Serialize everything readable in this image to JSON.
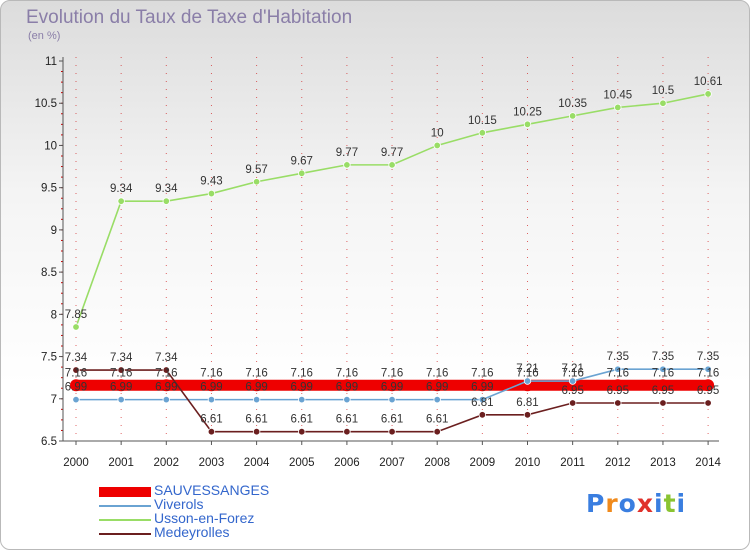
{
  "header": {
    "title": "Evolution du Taux de Taxe d'Habitation",
    "unit": "(en %)"
  },
  "logo": {
    "text": "Proxiti",
    "colors": [
      "#3a7ee0",
      "#f08a1c",
      "#3a7ee0",
      "#e0312b",
      "#3a7ee0",
      "#8ac432",
      "#3a7ee0"
    ]
  },
  "colors": {
    "grid_dash": "#cc0000",
    "axis": "#555555"
  },
  "chart_data": {
    "type": "line",
    "title": "Evolution du Taux de Taxe d'Habitation",
    "ylabel": "(en %)",
    "xlabel": "",
    "ylim": [
      6.5,
      11
    ],
    "y_ticks": [
      "6.5",
      "7",
      "7.5",
      "8",
      "8.5",
      "9",
      "9.5",
      "10",
      "10.5",
      "11"
    ],
    "categories": [
      "2000",
      "2001",
      "2002",
      "2003",
      "2004",
      "2005",
      "2006",
      "2007",
      "2008",
      "2009",
      "2010",
      "2011",
      "2012",
      "2013",
      "2014"
    ],
    "legend_position": "bottom-left",
    "series": [
      {
        "name": "SAUVESSANGES",
        "color": "#ee0000",
        "values": [
          7.16,
          7.16,
          7.16,
          7.16,
          7.16,
          7.16,
          7.16,
          7.16,
          7.16,
          7.16,
          7.16,
          7.16,
          7.16,
          7.16,
          7.16
        ],
        "labels": [
          "7.16",
          "7.16",
          "7.16",
          "7.16",
          "7.16",
          "7.16",
          "7.16",
          "7.16",
          "7.16",
          "7.16",
          "7.16",
          "7.16",
          "7.16",
          "7.16",
          "7.16"
        ]
      },
      {
        "name": "Viverols",
        "color": "#6aa3d2",
        "values": [
          6.99,
          6.99,
          6.99,
          6.99,
          6.99,
          6.99,
          6.99,
          6.99,
          6.99,
          6.99,
          7.21,
          7.21,
          7.35,
          7.35,
          7.35
        ],
        "labels": [
          "6.99",
          "6.99",
          "6.99",
          "6.99",
          "6.99",
          "6.99",
          "6.99",
          "6.99",
          "6.99",
          "6.99",
          "7.21",
          "7.21",
          "7.35",
          "7.35",
          "7.35"
        ]
      },
      {
        "name": "Usson-en-Forez",
        "color": "#99dd66",
        "values": [
          7.85,
          9.34,
          9.34,
          9.43,
          9.57,
          9.67,
          9.77,
          9.77,
          10,
          10.15,
          10.25,
          10.35,
          10.45,
          10.5,
          10.61
        ],
        "labels": [
          "7.85",
          "9.34",
          "9.34",
          "9.43",
          "9.57",
          "9.67",
          "9.77",
          "9.77",
          "10",
          "10.15",
          "10.25",
          "10.35",
          "10.45",
          "10.5",
          "10.61"
        ]
      },
      {
        "name": "Medeyrolles",
        "color": "#6b1f1f",
        "values": [
          7.34,
          7.34,
          7.34,
          6.61,
          6.61,
          6.61,
          6.61,
          6.61,
          6.61,
          6.81,
          6.81,
          6.95,
          6.95,
          6.95,
          6.95
        ],
        "labels": [
          "7.34",
          "7.34",
          "7.34",
          "6.61",
          "6.61",
          "6.61",
          "6.61",
          "6.61",
          "6.61",
          "6.81",
          "6.81",
          "6.95",
          "6.95",
          "6.95",
          "6.95"
        ]
      }
    ]
  }
}
